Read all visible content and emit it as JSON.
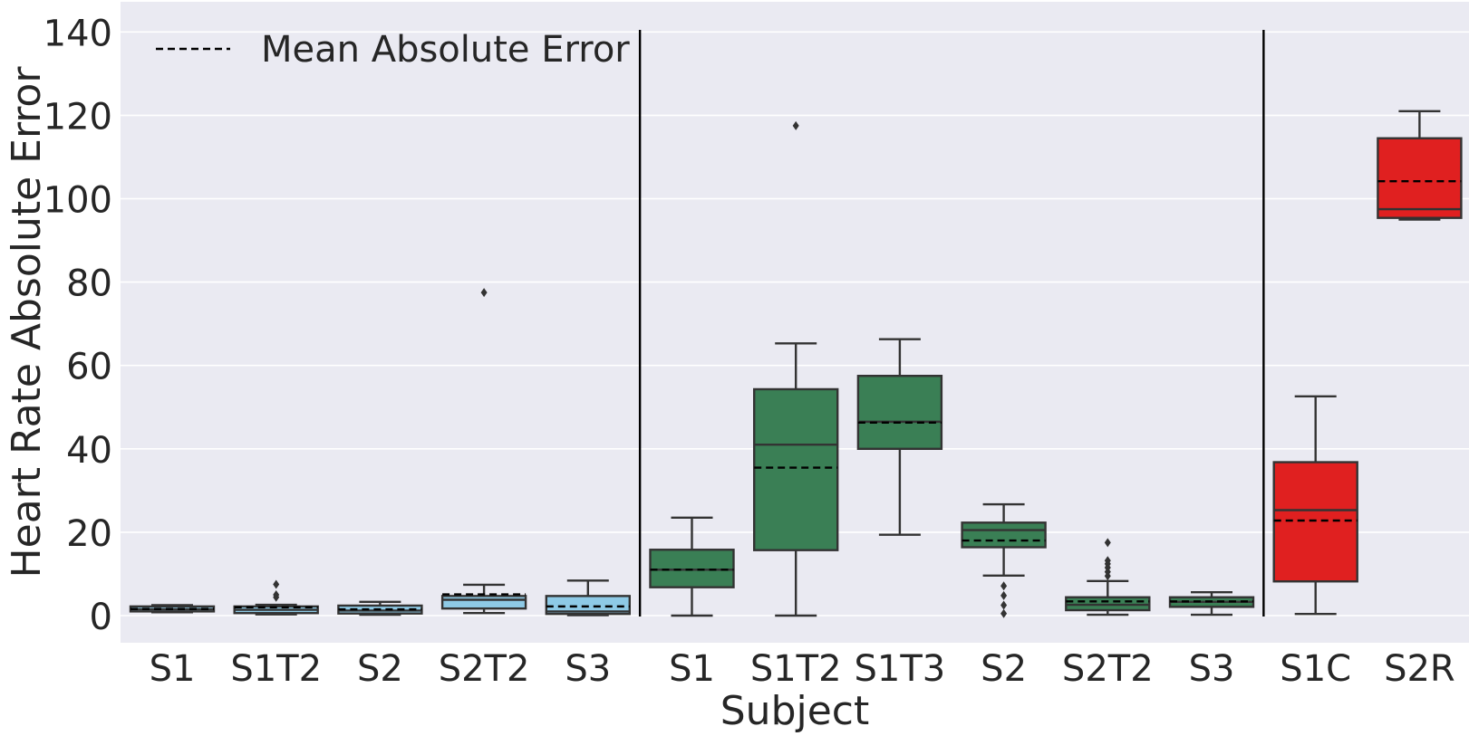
{
  "chart_data": {
    "type": "box",
    "xlabel": "Subject",
    "ylabel": "Heart Rate Absolute Error",
    "ylim": [
      -7,
      146
    ],
    "yticks": [
      0,
      20,
      40,
      60,
      80,
      100,
      120,
      140
    ],
    "grid": true,
    "legend": {
      "placement": "top-left",
      "label": "Mean Absolute Error",
      "style": "dashed"
    },
    "group_separators_after": [
      4,
      10
    ],
    "colors": {
      "group1": "#8ecae6",
      "group2": "#3a7f55",
      "group3": "#e02020",
      "line": "#333333",
      "background": "#eaeaf2"
    },
    "boxes": [
      {
        "category": "S1",
        "group": "group1",
        "whislo": 0.8,
        "q1": 1.0,
        "med": 1.5,
        "q3": 2.2,
        "whishi": 2.5,
        "mean": 1.6,
        "fliers": []
      },
      {
        "category": "S1T2",
        "group": "group1",
        "whislo": 0.3,
        "q1": 0.6,
        "med": 1.4,
        "q3": 2.2,
        "whishi": 2.6,
        "mean": 2.0,
        "fliers": [
          4.4,
          5.0,
          7.5
        ]
      },
      {
        "category": "S2",
        "group": "group1",
        "whislo": 0.2,
        "q1": 0.5,
        "med": 1.2,
        "q3": 2.4,
        "whishi": 3.3,
        "mean": 1.5,
        "fliers": []
      },
      {
        "category": "S2T2",
        "group": "group1",
        "whislo": 0.6,
        "q1": 1.7,
        "med": 3.8,
        "q3": 4.7,
        "whishi": 7.4,
        "mean": 5.1,
        "fliers": [
          77.5
        ]
      },
      {
        "category": "S3",
        "group": "group1",
        "whislo": 0.1,
        "q1": 0.4,
        "med": 1.0,
        "q3": 4.7,
        "whishi": 8.4,
        "mean": 2.2,
        "fliers": []
      },
      {
        "category": "S1",
        "group": "group2",
        "whislo": 0.0,
        "q1": 6.8,
        "med": 11.0,
        "q3": 15.8,
        "whishi": 23.5,
        "mean": 11.0,
        "fliers": []
      },
      {
        "category": "S1T2",
        "group": "group2",
        "whislo": 0.0,
        "q1": 15.7,
        "med": 41.0,
        "q3": 54.3,
        "whishi": 65.3,
        "mean": 35.5,
        "fliers": [
          117.5
        ]
      },
      {
        "category": "S1T3",
        "group": "group2",
        "whislo": 19.4,
        "q1": 40.0,
        "med": 46.5,
        "q3": 57.5,
        "whishi": 66.3,
        "mean": 46.3,
        "fliers": []
      },
      {
        "category": "S2",
        "group": "group2",
        "whislo": 9.6,
        "q1": 16.4,
        "med": 20.5,
        "q3": 22.3,
        "whishi": 26.7,
        "mean": 18.0,
        "fliers": [
          0.5,
          2.5,
          4.8,
          7.1
        ]
      },
      {
        "category": "S2T2",
        "group": "group2",
        "whislo": 0.2,
        "q1": 1.3,
        "med": 2.6,
        "q3": 4.4,
        "whishi": 8.3,
        "mean": 3.4,
        "fliers": [
          9.5,
          10.5,
          11.5,
          12.4,
          13.2,
          17.5
        ]
      },
      {
        "category": "S3",
        "group": "group2",
        "whislo": 0.2,
        "q1": 2.1,
        "med": 3.3,
        "q3": 4.4,
        "whishi": 5.6,
        "mean": 3.4,
        "fliers": []
      },
      {
        "category": "S1C",
        "group": "group3",
        "whislo": 0.4,
        "q1": 8.2,
        "med": 25.3,
        "q3": 36.8,
        "whishi": 52.6,
        "mean": 22.8,
        "fliers": []
      },
      {
        "category": "S2R",
        "group": "group3",
        "whislo": 95.0,
        "q1": 95.4,
        "med": 97.5,
        "q3": 114.5,
        "whishi": 121.0,
        "mean": 104.2,
        "fliers": []
      }
    ]
  }
}
